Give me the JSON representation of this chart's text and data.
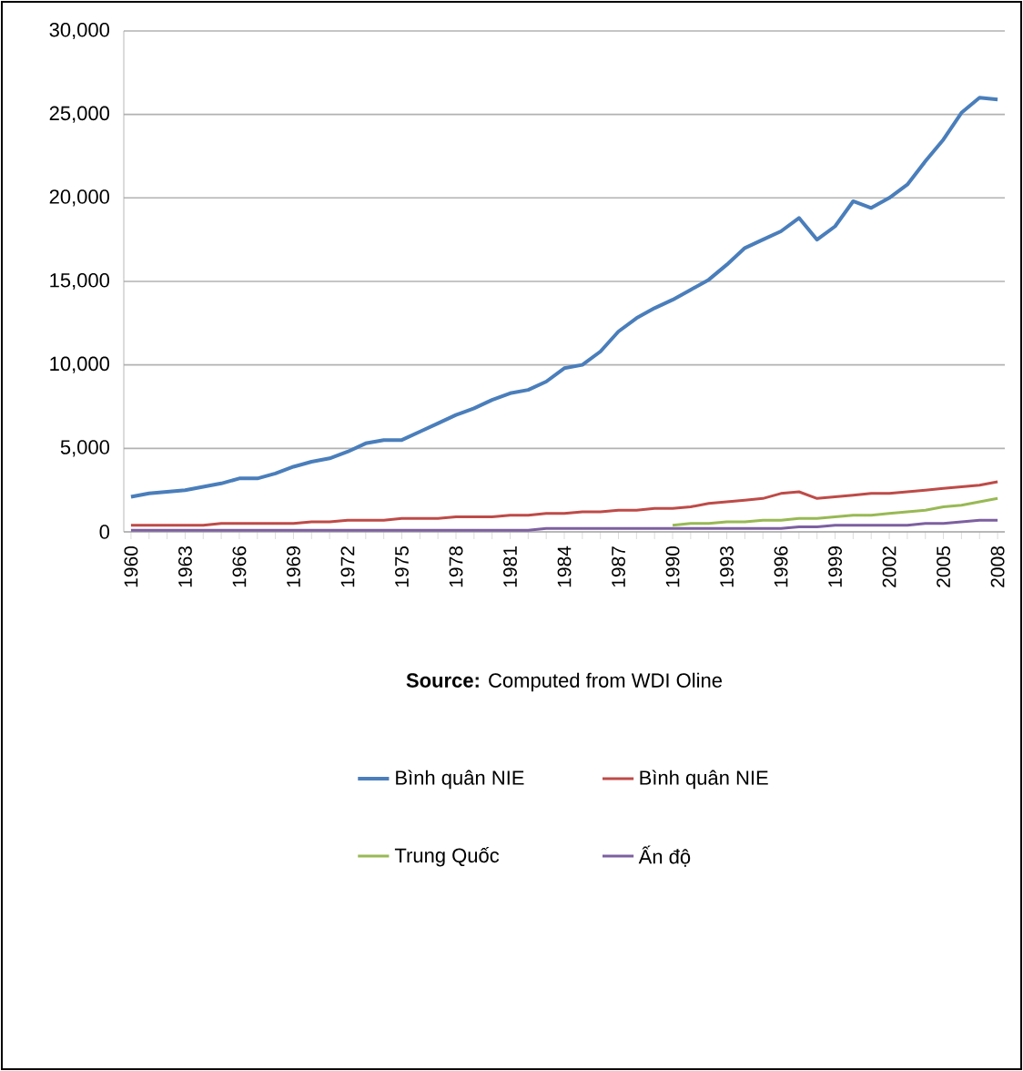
{
  "chart_data": {
    "type": "line",
    "categories": [
      "1960",
      null,
      null,
      "1963",
      null,
      null,
      "1966",
      null,
      null,
      "1969",
      null,
      null,
      "1972",
      null,
      null,
      "1975",
      null,
      null,
      "1978",
      null,
      null,
      "1981",
      null,
      null,
      "1984",
      null,
      null,
      "1987",
      null,
      null,
      "1990",
      null,
      null,
      "1993",
      null,
      null,
      "1996",
      null,
      null,
      "1999",
      null,
      null,
      "2002",
      null,
      null,
      "2005",
      null,
      null,
      "2008"
    ],
    "series": [
      {
        "name": "Bình quân NIE",
        "color": "#4a7ebb",
        "values": [
          2100,
          2300,
          2400,
          2500,
          2700,
          2900,
          3200,
          3200,
          3500,
          3900,
          4200,
          4400,
          4800,
          5300,
          5500,
          5500,
          6000,
          6500,
          7000,
          7400,
          7900,
          8300,
          8500,
          9000,
          9800,
          10000,
          10800,
          12000,
          12800,
          13400,
          13900,
          14500,
          15100,
          16000,
          17000,
          17500,
          18000,
          18800,
          17500,
          18300,
          19800,
          19400,
          20000,
          20800,
          22200,
          23500,
          25100,
          26000,
          25900
        ]
      },
      {
        "name": "Bình quân NIE",
        "color": "#be4b48",
        "values": [
          400,
          400,
          400,
          400,
          400,
          500,
          500,
          500,
          500,
          500,
          600,
          600,
          700,
          700,
          700,
          800,
          800,
          800,
          900,
          900,
          900,
          1000,
          1000,
          1100,
          1100,
          1200,
          1200,
          1300,
          1300,
          1400,
          1400,
          1500,
          1700,
          1800,
          1900,
          2000,
          2300,
          2400,
          2000,
          2100,
          2200,
          2300,
          2300,
          2400,
          2500,
          2600,
          2700,
          2800,
          3000
        ]
      },
      {
        "name": "Trung Quốc",
        "color": "#98b954",
        "values": [
          null,
          null,
          null,
          null,
          null,
          null,
          null,
          null,
          null,
          null,
          null,
          null,
          null,
          null,
          null,
          null,
          null,
          null,
          null,
          null,
          null,
          null,
          null,
          null,
          null,
          null,
          null,
          null,
          null,
          null,
          400,
          500,
          500,
          600,
          600,
          700,
          700,
          800,
          800,
          900,
          1000,
          1000,
          1100,
          1200,
          1300,
          1500,
          1600,
          1800,
          2000
        ]
      },
      {
        "name": "Ấn độ",
        "color": "#7d60a0",
        "values": [
          100,
          100,
          100,
          100,
          100,
          100,
          100,
          100,
          100,
          100,
          100,
          100,
          100,
          100,
          100,
          100,
          100,
          100,
          100,
          100,
          100,
          100,
          100,
          200,
          200,
          200,
          200,
          200,
          200,
          200,
          200,
          200,
          200,
          200,
          200,
          200,
          200,
          300,
          300,
          400,
          400,
          400,
          400,
          400,
          500,
          500,
          600,
          700,
          700
        ]
      }
    ],
    "ylim": [
      0,
      30000
    ],
    "yticks": [
      0,
      {
        "value": 5000,
        "label": "5,000"
      },
      {
        "value": 10000,
        "label": "10,000"
      },
      {
        "value": 15000,
        "label": "15,000"
      },
      {
        "value": 20000,
        "label": "20,000"
      },
      {
        "value": 25000,
        "label": "25,000"
      },
      {
        "value": 30000,
        "label": "30,000"
      }
    ],
    "grid": "y",
    "legend": "bottom",
    "annotations": [
      "**Source:** Computed from WDI Oline"
    ]
  }
}
